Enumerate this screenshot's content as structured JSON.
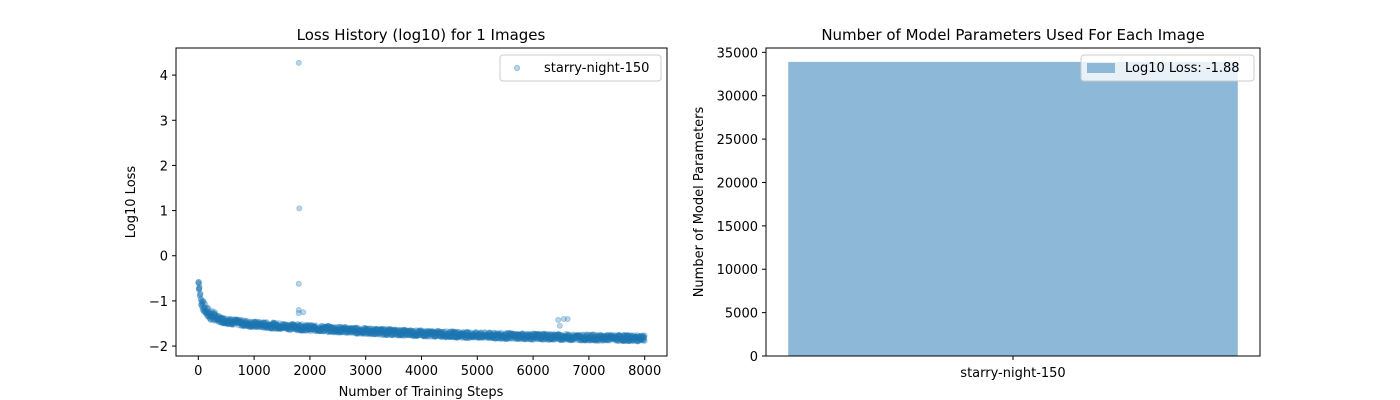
{
  "chart_data": [
    {
      "type": "scatter",
      "title": "Loss History (log10) for 1 Images",
      "xlabel": "Number of Training Steps",
      "ylabel": "Log10 Loss",
      "xlim": [
        -400,
        8400
      ],
      "ylim": [
        -2.22,
        4.6
      ],
      "xticks": [
        0,
        1000,
        2000,
        3000,
        4000,
        5000,
        6000,
        7000,
        8000
      ],
      "yticks": [
        -2,
        -1,
        0,
        1,
        2,
        3,
        4
      ],
      "grid": false,
      "legend_placement": "top-right",
      "series": [
        {
          "name": "starry-night-150",
          "color": "#1f77b4",
          "trend": [
            [
              0,
              -0.6
            ],
            [
              20,
              -0.75
            ],
            [
              50,
              -1.0
            ],
            [
              100,
              -1.15
            ],
            [
              200,
              -1.3
            ],
            [
              400,
              -1.42
            ],
            [
              700,
              -1.48
            ],
            [
              1000,
              -1.52
            ],
            [
              1500,
              -1.56
            ],
            [
              2000,
              -1.6
            ],
            [
              3000,
              -1.67
            ],
            [
              4000,
              -1.72
            ],
            [
              5000,
              -1.76
            ],
            [
              6000,
              -1.79
            ],
            [
              7000,
              -1.81
            ],
            [
              8000,
              -1.83
            ]
          ],
          "outliers": [
            [
              1800,
              4.27
            ],
            [
              1810,
              1.05
            ],
            [
              1800,
              -0.62
            ],
            [
              1800,
              -1.2
            ],
            [
              1800,
              -1.27
            ],
            [
              1880,
              -1.25
            ],
            [
              6450,
              -1.42
            ],
            [
              6480,
              -1.55
            ],
            [
              6550,
              -1.4
            ],
            [
              6620,
              -1.4
            ],
            [
              10,
              -0.58
            ],
            [
              15,
              -0.62
            ]
          ]
        }
      ]
    },
    {
      "type": "bar",
      "title": "Number of Model Parameters Used For Each Image",
      "xlabel": "",
      "ylabel": "Number of Model Parameters",
      "categories": [
        "starry-night-150"
      ],
      "ylim": [
        0,
        35500
      ],
      "yticks": [
        0,
        5000,
        10000,
        15000,
        20000,
        25000,
        30000,
        35000
      ],
      "grid": false,
      "legend_placement": "top-right",
      "series": [
        {
          "name": "Log10 Loss: -1.88",
          "values": [
            33900
          ],
          "color": "#8db8d8"
        }
      ]
    }
  ]
}
